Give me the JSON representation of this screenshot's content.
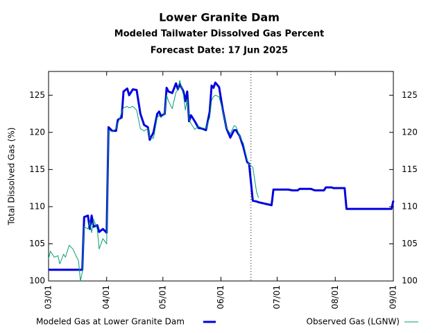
{
  "chart_data": {
    "type": "line",
    "title": "Lower Granite Dam",
    "subtitle": "Modeled Tailwater Dissolved Gas Percent",
    "forecast_date": "Forecast Date: 17 Jun 2025",
    "forecast_line": "06/17",
    "y_label": "Total Dissolved Gas (%)",
    "x": [
      "03/01",
      "03/02",
      "03/04",
      "03/06",
      "03/07",
      "03/09",
      "03/10",
      "03/12",
      "03/14",
      "03/16",
      "03/17",
      "03/18",
      "03/19",
      "03/20",
      "03/22",
      "03/23",
      "03/24",
      "03/25",
      "03/27",
      "03/28",
      "03/30",
      "04/01",
      "04/02",
      "04/04",
      "04/06",
      "04/07",
      "04/09",
      "04/10",
      "04/12",
      "04/13",
      "04/15",
      "04/17",
      "04/19",
      "04/21",
      "04/23",
      "04/24",
      "04/26",
      "04/28",
      "04/29",
      "04/30",
      "05/02",
      "05/03",
      "05/04",
      "05/06",
      "05/08",
      "05/09",
      "05/10",
      "05/12",
      "05/13",
      "05/14",
      "05/15",
      "05/16",
      "05/18",
      "05/20",
      "05/22",
      "05/24",
      "05/26",
      "05/27",
      "05/28",
      "05/29",
      "05/31",
      "06/02",
      "06/04",
      "06/06",
      "06/08",
      "06/09",
      "06/11",
      "06/13",
      "06/15",
      "06/16",
      "06/18",
      "06/20",
      "06/21",
      "06/28",
      "06/29",
      "07/07",
      "07/09",
      "07/12",
      "07/13",
      "07/19",
      "07/21",
      "07/26",
      "07/27",
      "07/30",
      "07/31",
      "08/06",
      "08/07",
      "08/31",
      "09/01"
    ],
    "series": [
      {
        "name": "Modeled Gas at Lower Granite Dam",
        "color": "#0000e0",
        "width": 3,
        "values": [
          101.5,
          101.5,
          101.5,
          101.5,
          101.5,
          101.5,
          101.5,
          101.5,
          101.5,
          101.5,
          101.5,
          101.5,
          101.5,
          108.6,
          108.8,
          107,
          108.8,
          107.3,
          107.5,
          106.6,
          107,
          106.5,
          120.7,
          120.2,
          120.2,
          121.7,
          122,
          125.5,
          125.9,
          125,
          125.8,
          125.7,
          122.5,
          121,
          120.7,
          119,
          120,
          122.5,
          122.8,
          122.2,
          122.5,
          126,
          125.5,
          125.3,
          126.6,
          125.8,
          126.5,
          125.5,
          124.2,
          125.5,
          121.5,
          122.3,
          121.5,
          120.6,
          120.5,
          120.3,
          122.8,
          126.3,
          126,
          126.7,
          126.1,
          123,
          120.5,
          119.3,
          120.3,
          120.3,
          119.5,
          118,
          116,
          115.8,
          110.8,
          110.7,
          110.6,
          110.2,
          112.3,
          112.3,
          112.2,
          112.2,
          112.4,
          112.4,
          112.2,
          112.2,
          112.6,
          112.6,
          112.5,
          112.5,
          109.7,
          109.7,
          110.8
        ]
      },
      {
        "name": "Observed Gas (LGNW)",
        "color": "#009e73",
        "width": 1,
        "values": [
          103,
          104,
          103.2,
          103.4,
          102.3,
          103.6,
          103.2,
          104.8,
          104.3,
          103.2,
          102.7,
          100,
          101.2,
          107.3,
          107,
          108,
          106.5,
          108.3,
          107,
          104.3,
          105.7,
          105,
          120.3,
          120.1,
          120.5,
          121.2,
          122.7,
          123.3,
          123.5,
          123.3,
          123.5,
          123,
          120.5,
          120.2,
          120.5,
          119.3,
          119.2,
          122,
          122.3,
          122,
          122.5,
          125,
          124.2,
          123.2,
          125.4,
          125.7,
          127,
          125,
          123,
          124.5,
          121.7,
          121.2,
          120.4,
          120.8,
          120.6,
          120.5,
          122,
          124.3,
          124.8,
          125,
          124.8,
          122.8,
          120.6,
          119.8,
          120.9,
          120.8,
          119.5,
          118.5,
          116.3,
          115.7,
          115.3,
          112,
          111.2,
          null,
          null,
          null,
          null,
          null,
          null,
          null,
          null,
          null,
          null,
          null,
          null,
          null,
          null,
          null,
          null
        ]
      }
    ],
    "xlim": [
      "03/01",
      "09/01"
    ],
    "xticks": [
      "03/01",
      "04/01",
      "05/01",
      "06/01",
      "07/01",
      "08/01",
      "09/01"
    ],
    "ylim": [
      100,
      128.2
    ],
    "yticks": [
      100,
      105,
      110,
      115,
      120,
      125
    ],
    "legend": "bottom"
  }
}
